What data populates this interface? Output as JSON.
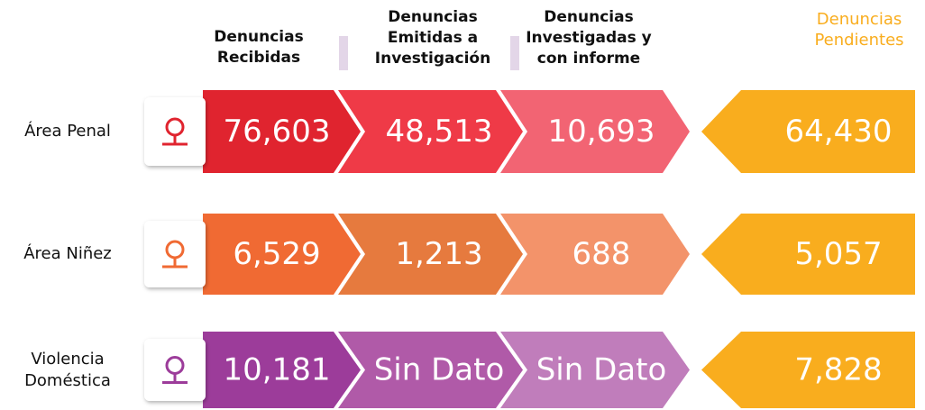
{
  "headers": [
    "Denuncias Recibidas",
    "Denuncias Emitidas a Investigación",
    "Denuncias Investigadas y con informe",
    "Denuncias Pendientes"
  ],
  "rows": [
    {
      "label": "Área Penal",
      "cells": [
        "76,603",
        "48,513",
        "10,693",
        "64,430"
      ],
      "colors": [
        "#e0242f",
        "#ef3a47",
        "#f26473"
      ]
    },
    {
      "label": "Área Niñez",
      "cells": [
        "6,529",
        "1,213",
        "688",
        "5,057"
      ],
      "colors": [
        "#f06a33",
        "#e67a3e",
        "#f3936a"
      ]
    },
    {
      "label": "Violencia Doméstica",
      "cells": [
        "10,181",
        "Sin Dato",
        "Sin Dato",
        "7,828"
      ],
      "colors": [
        "#9c3c9a",
        "#b05aa8",
        "#c07dbb"
      ]
    }
  ],
  "pending_color": "#f9ad1e"
}
